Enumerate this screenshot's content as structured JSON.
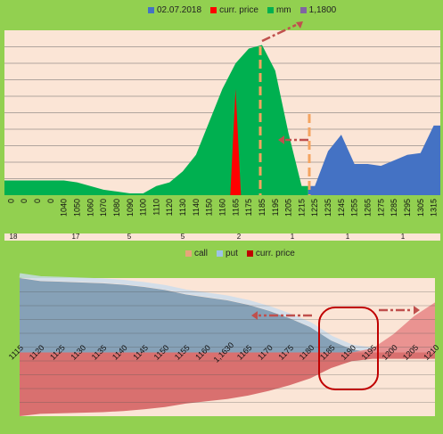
{
  "chart_data": [
    {
      "type": "area",
      "legend": [
        {
          "label": "02.07.2018",
          "color": "#4472c4"
        },
        {
          "label": "curr. price",
          "color": "#ff0000"
        },
        {
          "label": "mm",
          "color": "#00b050"
        },
        {
          "label": "1,1800",
          "color": "#8064a2"
        }
      ],
      "categories": [
        "0",
        "0",
        "0",
        "0",
        "1040",
        "1050",
        "1060",
        "1070",
        "1080",
        "1090",
        "1100",
        "1110",
        "1120",
        "1130",
        "1140",
        "1150",
        "1160",
        "1165",
        "1175",
        "1185",
        "1195",
        "1205",
        "1215",
        "1225",
        "1235",
        "1245",
        "1255",
        "1265",
        "1275",
        "1285",
        "1295",
        "1305",
        "1315"
      ],
      "secondary_tick_labels": [
        "18",
        "17",
        "5",
        "5",
        "2",
        "1",
        "1",
        "1"
      ],
      "series": [
        {
          "name": "mm",
          "color": "#00b050",
          "values": [
            8,
            8,
            8,
            8,
            8,
            7,
            5,
            3,
            2,
            1,
            1,
            5,
            7,
            13,
            22,
            40,
            58,
            72,
            80,
            82,
            68,
            34,
            5,
            0,
            0,
            0,
            0,
            0,
            0,
            0,
            0,
            0,
            0
          ]
        },
        {
          "name": "02.07.2018",
          "color": "#4472c4",
          "values": [
            0,
            0,
            0,
            0,
            0,
            0,
            0,
            0,
            0,
            0,
            0,
            0,
            0,
            0,
            0,
            0,
            0,
            0,
            0,
            0,
            0,
            0,
            0,
            5,
            24,
            33,
            17,
            17,
            16,
            19,
            22,
            23,
            38
          ]
        },
        {
          "name": "curr. price",
          "color": "#ff0000",
          "values": [
            0,
            0,
            0,
            0,
            0,
            0,
            0,
            0,
            0,
            0,
            0,
            0,
            0,
            0,
            0,
            0,
            0,
            58,
            0,
            0,
            0,
            0,
            0,
            0,
            0,
            0,
            0,
            0,
            0,
            0,
            0,
            0,
            0
          ]
        }
      ],
      "ylim": [
        0,
        90
      ],
      "grid": true
    },
    {
      "type": "area",
      "legend": [
        {
          "label": "call",
          "color": "#e6a57a"
        },
        {
          "label": "put",
          "color": "#9dc3e6"
        },
        {
          "label": "curr. price",
          "color": "#c00000"
        }
      ],
      "categories": [
        "1115",
        "1120",
        "1125",
        "1130",
        "1135",
        "1140",
        "1145",
        "1150",
        "1155",
        "1160",
        "1,1630",
        "1165",
        "1170",
        "1175",
        "1180",
        "1185",
        "1190",
        "1195",
        "1200",
        "1205",
        "1210"
      ],
      "series": [
        {
          "name": "put",
          "color": "#7f9db5",
          "values": [
            100,
            96,
            95,
            94,
            93,
            91,
            88,
            84,
            78,
            74,
            70,
            64,
            56,
            46,
            34,
            16,
            4,
            0,
            0,
            0,
            0
          ]
        },
        {
          "name": "call",
          "color": "#d9706f",
          "values": [
            0,
            0,
            0,
            0,
            0,
            0,
            0,
            0,
            0,
            0,
            0,
            0,
            0,
            0,
            0,
            0,
            0,
            8,
            35,
            70,
            96
          ]
        }
      ],
      "ylim": [
        -100,
        100
      ],
      "grid": true
    }
  ]
}
